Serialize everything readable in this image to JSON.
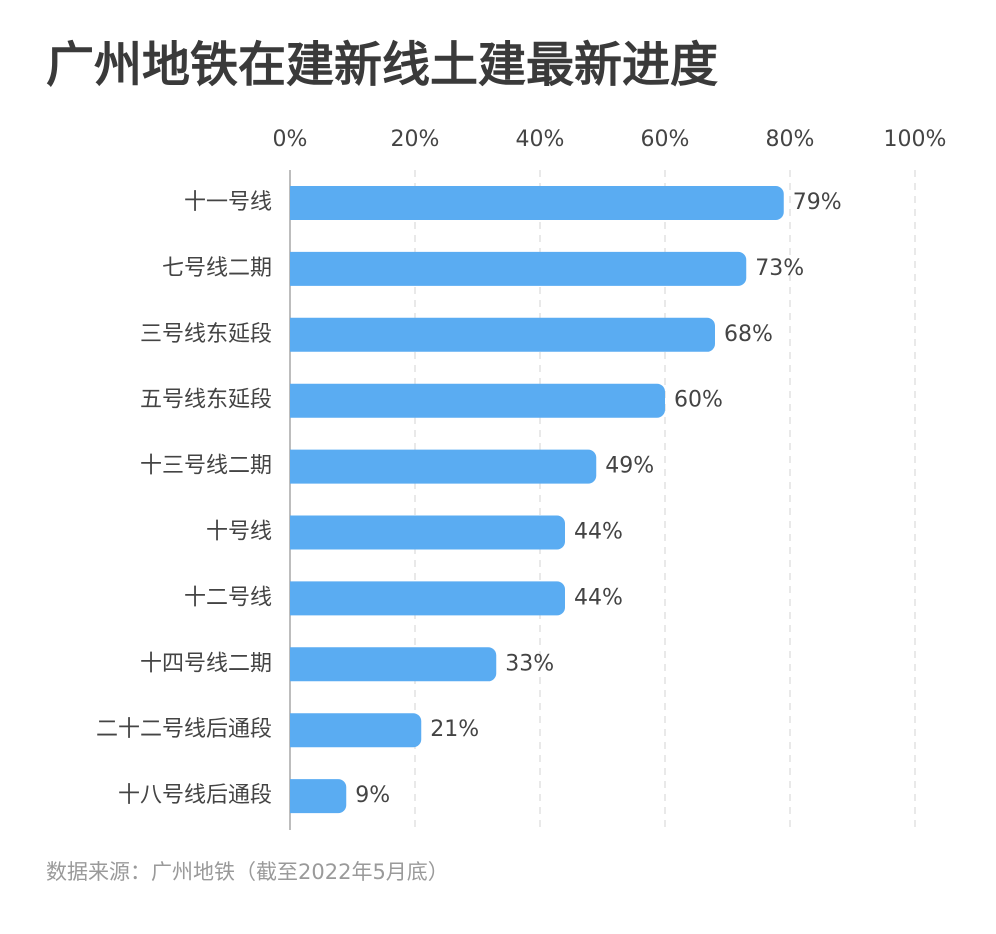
{
  "chart_data": {
    "type": "bar",
    "orientation": "horizontal",
    "title": "广州地铁在建新线土建最新进度",
    "categories": [
      "十一号线",
      "七号线二期",
      "三号线东延段",
      "五号线东延段",
      "十三号线二期",
      "十号线",
      "十二号线",
      "十四号线二期",
      "二十二号线后通段",
      "十八号线后通段"
    ],
    "values": [
      79,
      73,
      68,
      60,
      49,
      44,
      44,
      33,
      21,
      9
    ],
    "value_labels": [
      "79%",
      "73%",
      "68%",
      "60%",
      "49%",
      "44%",
      "44%",
      "33%",
      "21%",
      "9%"
    ],
    "color": "#5aacf2",
    "xlim": [
      0,
      100
    ],
    "xticks": [
      {
        "value": 0,
        "label": "0%"
      },
      {
        "value": 20,
        "label": "20%"
      },
      {
        "value": 40,
        "label": "40%"
      },
      {
        "value": 60,
        "label": "60%"
      },
      {
        "value": 80,
        "label": "80%"
      },
      {
        "value": 100,
        "label": "100%"
      }
    ],
    "grid": true,
    "source": "数据来源：广州地铁（截至2022年5月底）"
  }
}
